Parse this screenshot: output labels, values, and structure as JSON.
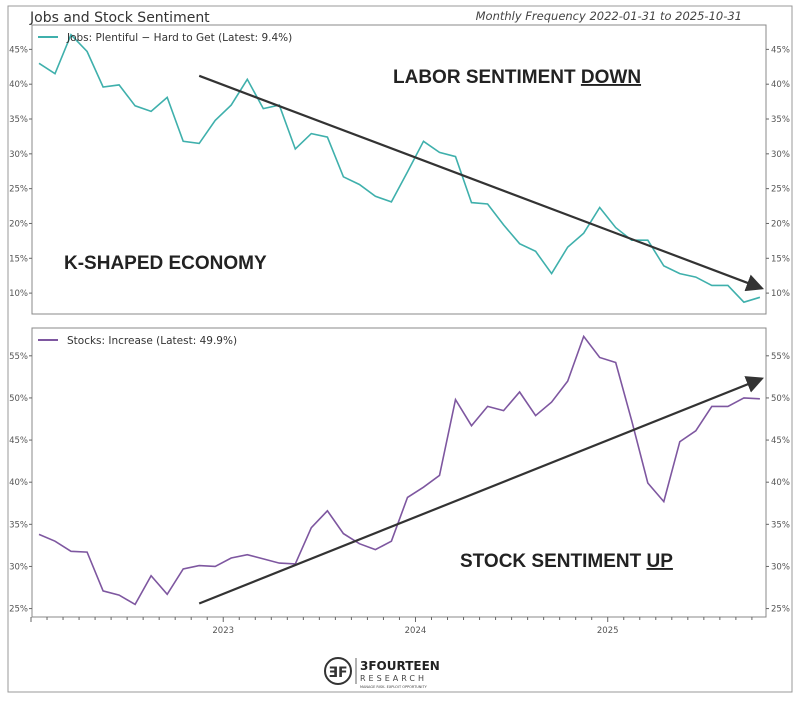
{
  "header": {
    "title": "Jobs and Stock Sentiment",
    "subtitle": "Monthly Frequency 2022-01-31 to 2025-10-31"
  },
  "logo": {
    "name": "3FOURTEEN",
    "sub": "RESEARCH",
    "tagline": "MANAGE RISK. EXPLOIT OPPORTUNITY"
  },
  "chart_data": [
    {
      "type": "line",
      "legend": "Jobs: Plentiful − Hard to Get (Latest: 9.4%)",
      "legend_placement": "top-left",
      "color": "#3fb0ac",
      "x_start": "2022-01-31",
      "x_end": "2025-10-31",
      "frequency": "monthly",
      "ylim": [
        7,
        48.5
      ],
      "yticks": [
        "10%",
        "15%",
        "20%",
        "25%",
        "30%",
        "35%",
        "40%",
        "45%"
      ],
      "ytick_values": [
        10,
        15,
        20,
        25,
        30,
        35,
        40,
        45
      ],
      "values": [
        43.0,
        41.5,
        47.1,
        44.7,
        39.6,
        39.9,
        36.9,
        36.1,
        38.1,
        31.8,
        31.5,
        34.8,
        37.0,
        40.7,
        36.5,
        37.0,
        30.7,
        32.9,
        32.4,
        26.7,
        25.6,
        23.9,
        23.1,
        27.4,
        31.8,
        30.2,
        29.6,
        23.0,
        22.8,
        19.8,
        17.1,
        16.0,
        12.8,
        16.6,
        18.6,
        22.3,
        19.4,
        17.6,
        17.6,
        13.9,
        12.8,
        12.3,
        11.1,
        11.1,
        8.7,
        9.4
      ],
      "annotations": [
        {
          "text": "LABOR SENTIMENT ",
          "emph": "DOWN"
        },
        {
          "text": "K-SHAPED ECONOMY"
        }
      ],
      "trend_arrow": {
        "from": [
          "2022-11-30",
          41.2
        ],
        "to": [
          "2025-10-31",
          10.8
        ],
        "color": "#333333"
      }
    },
    {
      "type": "line",
      "legend": "Stocks: Increase (Latest: 49.9%)",
      "legend_placement": "top-left",
      "color": "#7e57a0",
      "x_start": "2022-01-31",
      "x_end": "2025-10-31",
      "frequency": "monthly",
      "ylim": [
        24,
        58.3
      ],
      "yticks": [
        "25%",
        "30%",
        "35%",
        "40%",
        "45%",
        "50%",
        "55%"
      ],
      "ytick_values": [
        25,
        30,
        35,
        40,
        45,
        50,
        55
      ],
      "xticks": [
        "2023",
        "2024",
        "2025"
      ],
      "values": [
        33.8,
        33.0,
        31.8,
        31.7,
        27.1,
        26.6,
        25.5,
        28.9,
        26.7,
        29.7,
        30.1,
        30.0,
        31.0,
        31.4,
        30.9,
        30.4,
        30.3,
        34.6,
        36.6,
        33.9,
        32.7,
        32.0,
        33.0,
        38.2,
        39.4,
        40.8,
        49.8,
        46.7,
        49.0,
        48.5,
        50.7,
        47.9,
        49.5,
        52.0,
        57.3,
        54.8,
        54.2,
        47.3,
        39.9,
        37.7,
        44.8,
        46.1,
        49.0,
        49.0,
        50.0,
        49.9
      ],
      "annotations": [
        {
          "text": "STOCK SENTIMENT ",
          "emph": "UP"
        }
      ],
      "trend_arrow": {
        "from": [
          "2022-11-30",
          25.6
        ],
        "to": [
          "2025-10-31",
          52.2
        ],
        "color": "#333333"
      }
    }
  ]
}
